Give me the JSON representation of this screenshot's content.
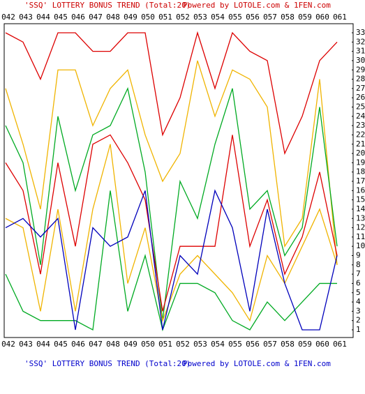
{
  "chart_data": {
    "type": "line",
    "title": "'SSQ' LOTTERY BONUS TREND (Total:20)",
    "credit": "Powered by LOTOLE.com & 1FEN.com",
    "footer_title": "'SSQ' LOTTERY BONUS TREND (Total:20)",
    "footer_credit": "Powered by LOTOLE.com & 1FEN.com",
    "title_color": "#cc0000",
    "footer_color": "#0000cc",
    "categories": [
      "042",
      "043",
      "044",
      "045",
      "046",
      "047",
      "048",
      "049",
      "050",
      "051",
      "052",
      "053",
      "054",
      "055",
      "056",
      "057",
      "058",
      "059",
      "060",
      "061"
    ],
    "ylim": [
      1,
      33
    ],
    "yticks": [
      1,
      2,
      3,
      4,
      5,
      6,
      7,
      8,
      9,
      10,
      11,
      12,
      13,
      14,
      15,
      16,
      17,
      18,
      19,
      20,
      21,
      22,
      23,
      24,
      25,
      26,
      27,
      28,
      29,
      30,
      31,
      32,
      33
    ],
    "series": [
      {
        "color": "#dd0000",
        "values": [
          33,
          32,
          28,
          33,
          33,
          31,
          31,
          33,
          33,
          22,
          26,
          33,
          27,
          33,
          31,
          30,
          20,
          24,
          30,
          32
        ]
      },
      {
        "color": "#f0b400",
        "values": [
          27,
          21,
          14,
          29,
          29,
          23,
          27,
          29,
          22,
          17,
          20,
          30,
          24,
          29,
          28,
          25,
          10,
          13,
          28,
          8
        ]
      },
      {
        "color": "#00aa22",
        "values": [
          23,
          19,
          8,
          24,
          16,
          22,
          23,
          27,
          18,
          2,
          17,
          13,
          21,
          27,
          14,
          16,
          9,
          12,
          25,
          10
        ]
      },
      {
        "color": "#dd0000",
        "values": [
          19,
          16,
          7,
          19,
          10,
          21,
          22,
          19,
          15,
          3,
          10,
          10,
          10,
          22,
          10,
          15,
          7,
          11,
          18,
          9
        ]
      },
      {
        "color": "#f0b400",
        "values": [
          13,
          12,
          3,
          14,
          3,
          14,
          21,
          6,
          12,
          2,
          7,
          9,
          7,
          5,
          2,
          9,
          6,
          10,
          14,
          8
        ]
      },
      {
        "color": "#00aa22",
        "values": [
          7,
          3,
          2,
          2,
          2,
          1,
          16,
          3,
          9,
          1,
          6,
          6,
          5,
          2,
          1,
          4,
          2,
          4,
          6,
          6
        ]
      },
      {
        "color": "#0000bb",
        "values": [
          12,
          13,
          11,
          13,
          1,
          12,
          10,
          11,
          16,
          1,
          9,
          7,
          16,
          12,
          3,
          14,
          6,
          1,
          1,
          9
        ]
      }
    ]
  }
}
